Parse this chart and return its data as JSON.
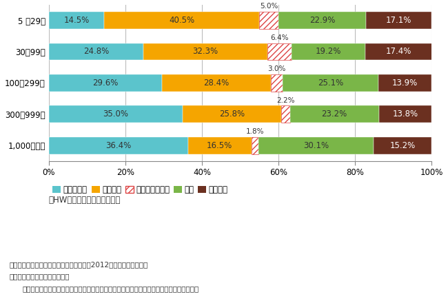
{
  "categories": [
    "5 ～29人",
    "30～99人",
    "100～299人",
    "300～999人",
    "1,000人以上"
  ],
  "series": {
    "職業安定所": [
      36.4,
      35.0,
      29.6,
      24.8,
      14.5
    ],
    "求人広告": [
      16.5,
      25.8,
      28.4,
      32.3,
      40.5
    ],
    "民営職業紹介所": [
      1.8,
      2.2,
      3.0,
      6.4,
      5.0
    ],
    "縁故": [
      30.1,
      23.2,
      25.1,
      19.2,
      22.9
    ],
    "左記以外": [
      15.2,
      13.8,
      13.9,
      17.4,
      17.1
    ]
  },
  "colors": {
    "職業安定所": "#5bc4cc",
    "求人広告": "#f5a500",
    "民営職業紹介所": "#ffffff",
    "縁故": "#7ab648",
    "左記以外": "#6b3020"
  },
  "hatch_color": "#d44",
  "legend_labels": [
    "職業安定所",
    "求人広告",
    "民営職業紹介所",
    "縁故",
    "左記以外"
  ],
  "legend_note": "（HWインターネットを含む）",
  "footnote1": "出所）厘生労働省「雇用動向調査結果」（2012）から筆者が作成。",
  "footnote2": "注）転職入職者の割合（％）。",
  "footnote3": "「左記以外」には、「学校」、「出向」、「出向先からの復帰」、「その他」が含まれる。",
  "bar_height": 0.55,
  "background_color": "#ffffff",
  "plot_bg_color": "#ffffff",
  "grid_color": "#bbbbbb",
  "text_color": "#333333",
  "fontsize_bar_label": 8.5,
  "fontsize_above_label": 7.5,
  "fontsize_tick": 8.5,
  "fontsize_legend": 8.5,
  "fontsize_footnote": 7.5
}
